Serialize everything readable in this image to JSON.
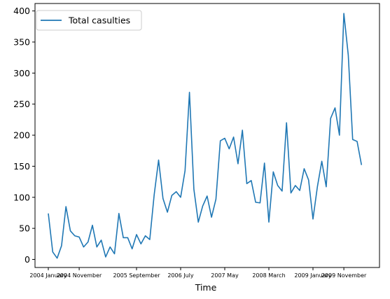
{
  "chart_data": {
    "type": "line",
    "title": "",
    "xlabel": "Time",
    "ylabel": "",
    "ylim": [
      -13,
      412
    ],
    "yticks": [
      0,
      50,
      100,
      150,
      200,
      250,
      300,
      350,
      400
    ],
    "xticks": [
      {
        "index": 0,
        "label": "2004 January"
      },
      {
        "index": 7,
        "label": "2004 November"
      },
      {
        "index": 20,
        "label": "2005 September"
      },
      {
        "index": 30,
        "label": "2006 July"
      },
      {
        "index": 40,
        "label": "2007 May"
      },
      {
        "index": 50,
        "label": "2008 March"
      },
      {
        "index": 60,
        "label": "2009 January"
      },
      {
        "index": 67,
        "label": "2009 November"
      }
    ],
    "legend": {
      "position": "top-left"
    },
    "grid": false,
    "series": [
      {
        "name": "Total casulties",
        "color": "#1f77b4",
        "values": [
          74,
          12,
          2,
          22,
          85,
          46,
          38,
          36,
          20,
          28,
          55,
          20,
          31,
          4,
          20,
          9,
          74,
          35,
          35,
          17,
          40,
          25,
          38,
          32,
          104,
          160,
          98,
          76,
          103,
          109,
          100,
          143,
          269,
          113,
          60,
          86,
          102,
          68,
          97,
          191,
          195,
          178,
          197,
          154,
          208,
          122,
          127,
          92,
          91,
          155,
          60,
          141,
          119,
          110,
          220,
          107,
          119,
          111,
          146,
          128,
          65,
          117,
          158,
          117,
          227,
          244,
          200,
          396,
          329,
          193,
          190,
          152
        ]
      }
    ]
  }
}
